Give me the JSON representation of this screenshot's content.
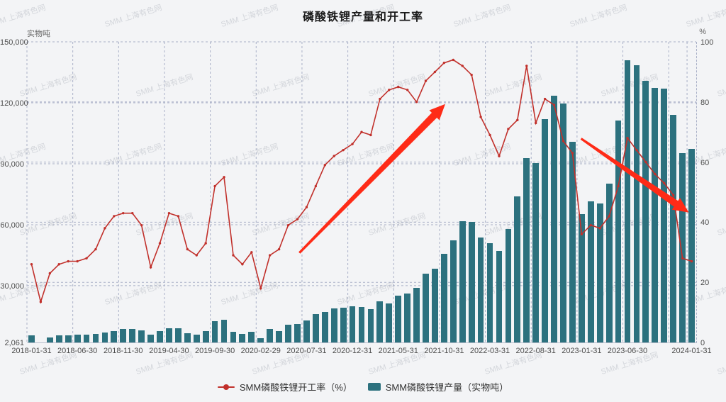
{
  "title": "磷酸铁锂产量和开工率",
  "watermark": "SMM 上海有色网",
  "colors": {
    "bar": "#2c717e",
    "line": "#c1302b",
    "arrow": "#fe2b17",
    "grid": "#a9b0c7",
    "background": "#f3f4f6",
    "tick_text": "#4d4d4d",
    "title_text": "#1a1a1a"
  },
  "legend": [
    {
      "label": "SMM磷酸铁锂开工率（%）",
      "marker": "line-dot",
      "color": "#c1302b"
    },
    {
      "label": "SMM磷酸铁锂产量（实物吨）",
      "marker": "rect",
      "color": "#2c717e"
    }
  ],
  "chart_data": {
    "type": "bar+line",
    "title": "磷酸铁锂产量和开工率",
    "y_left": {
      "name": "实物吨",
      "min": 2061,
      "max": 150000,
      "grid_values": [
        150000,
        120000,
        90000,
        60000,
        30000
      ],
      "ticks": [
        {
          "v": 150000,
          "label": "150,000"
        },
        {
          "v": 120000,
          "label": "120,000"
        },
        {
          "v": 90000,
          "label": "90,000"
        },
        {
          "v": 60000,
          "label": "60,000"
        },
        {
          "v": 30000,
          "label": "30,000"
        },
        {
          "v": 2061,
          "label": "2,061"
        }
      ]
    },
    "y_right": {
      "name": "%",
      "min": 0,
      "max": 100,
      "grid_values": [
        100,
        80,
        60,
        40,
        20
      ],
      "ticks": [
        {
          "v": 100,
          "label": "100"
        },
        {
          "v": 80,
          "label": "80"
        },
        {
          "v": 60,
          "label": "60"
        },
        {
          "v": 40,
          "label": "40"
        },
        {
          "v": 20,
          "label": "20"
        },
        {
          "v": 0,
          "label": "0"
        }
      ]
    },
    "categories": [
      "2018-01-31",
      "2018-02-28",
      "2018-03-31",
      "2018-04-30",
      "2018-05-31",
      "2018-06-30",
      "2018-07-31",
      "2018-08-31",
      "2018-09-30",
      "2018-10-31",
      "2018-11-30",
      "2018-12-31",
      "2019-01-31",
      "2019-02-28",
      "2019-03-31",
      "2019-04-30",
      "2019-05-31",
      "2019-06-30",
      "2019-07-31",
      "2019-08-31",
      "2019-09-30",
      "2019-10-31",
      "2019-11-30",
      "2019-12-31",
      "2020-01-31",
      "2020-02-29",
      "2020-03-31",
      "2020-04-30",
      "2020-05-31",
      "2020-06-30",
      "2020-07-31",
      "2020-08-31",
      "2020-09-30",
      "2020-10-31",
      "2020-11-30",
      "2020-12-31",
      "2021-01-31",
      "2021-02-28",
      "2021-03-31",
      "2021-04-30",
      "2021-05-31",
      "2021-06-30",
      "2021-07-31",
      "2021-08-31",
      "2021-09-30",
      "2021-10-31",
      "2021-11-30",
      "2021-12-31",
      "2022-01-31",
      "2022-02-28",
      "2022-03-31",
      "2022-04-30",
      "2022-05-31",
      "2022-06-30",
      "2022-07-31",
      "2022-08-31",
      "2022-09-30",
      "2022-10-31",
      "2022-11-30",
      "2022-12-31",
      "2023-01-31",
      "2023-02-28",
      "2023-03-31",
      "2023-04-30",
      "2023-05-31",
      "2023-06-30",
      "2023-07-31",
      "2023-08-31",
      "2023-09-30",
      "2023-10-31",
      "2023-11-30",
      "2023-12-31",
      "2024-01-31"
    ],
    "series": [
      {
        "name": "SMM磷酸铁锂产量（实物吨）",
        "type": "bar",
        "axis": "left",
        "color": "#2c717e",
        "values": [
          5700,
          2061,
          4600,
          5500,
          5500,
          5800,
          5800,
          6300,
          7000,
          7800,
          8600,
          8600,
          8100,
          6000,
          7800,
          9000,
          8900,
          6600,
          6000,
          7800,
          12700,
          13200,
          7400,
          6300,
          7400,
          4300,
          8600,
          7800,
          10700,
          11300,
          13000,
          15900,
          17100,
          18800,
          19100,
          19800,
          19400,
          18500,
          22300,
          21200,
          25200,
          26000,
          29000,
          35900,
          38300,
          45600,
          52300,
          61900,
          61300,
          53800,
          50800,
          47000,
          57800,
          74100,
          92800,
          90500,
          112000,
          123400,
          119500,
          100800,
          65200,
          71500,
          70300,
          80200,
          111200,
          141100,
          138600,
          130700,
          127400,
          126900,
          114100,
          95100,
          97400
        ]
      },
      {
        "name": "SMM磷酸铁锂开工率（%）",
        "type": "line",
        "axis": "right",
        "color": "#c1302b",
        "values": [
          26,
          13.5,
          23,
          26,
          27,
          27,
          28,
          31,
          38,
          42,
          43,
          43,
          39,
          25,
          33,
          43,
          42,
          31,
          29,
          33,
          52,
          55,
          29,
          26,
          30,
          18,
          29,
          31,
          39,
          41,
          45,
          52,
          59,
          62,
          64,
          66,
          70,
          69,
          81,
          84,
          85,
          84,
          80,
          87,
          90,
          93,
          94,
          92,
          89,
          75,
          69,
          62,
          71,
          74,
          92,
          73,
          81,
          79,
          67,
          63,
          36,
          39,
          38,
          42,
          52,
          68,
          64,
          60,
          56,
          53,
          49,
          28,
          27
        ]
      }
    ],
    "x_ticks": [
      {
        "i": 0,
        "label": "2018-01-31"
      },
      {
        "i": 5,
        "label": "2018-06-30"
      },
      {
        "i": 10,
        "label": "2018-11-30"
      },
      {
        "i": 15,
        "label": "2019-04-30"
      },
      {
        "i": 20,
        "label": "2019-09-30"
      },
      {
        "i": 25,
        "label": "2020-02-29"
      },
      {
        "i": 30,
        "label": "2020-07-31"
      },
      {
        "i": 35,
        "label": "2020-12-31"
      },
      {
        "i": 40,
        "label": "2021-05-31"
      },
      {
        "i": 45,
        "label": "2021-10-31"
      },
      {
        "i": 50,
        "label": "2022-03-31"
      },
      {
        "i": 55,
        "label": "2022-08-31"
      },
      {
        "i": 60,
        "label": "2023-01-31"
      },
      {
        "i": 65,
        "label": "2023-06-30"
      },
      {
        "i": 72,
        "label": "2024-01-31"
      }
    ],
    "x_gridline_indices": [
      0,
      5,
      10,
      15,
      20,
      25,
      30,
      35,
      40,
      45,
      50,
      55,
      60,
      65,
      70,
      72
    ],
    "grid": {
      "style": "dashed",
      "legend_position": "bottom"
    },
    "annotations": [
      {
        "type": "arrow",
        "direction": "up",
        "from_pct": [
          40.7,
          70.2
        ],
        "to_pct": [
          62.5,
          20.7
        ]
      },
      {
        "type": "arrow",
        "direction": "down",
        "from_pct": [
          82.8,
          32.2
        ],
        "to_pct": [
          98.9,
          56.8
        ]
      }
    ]
  }
}
